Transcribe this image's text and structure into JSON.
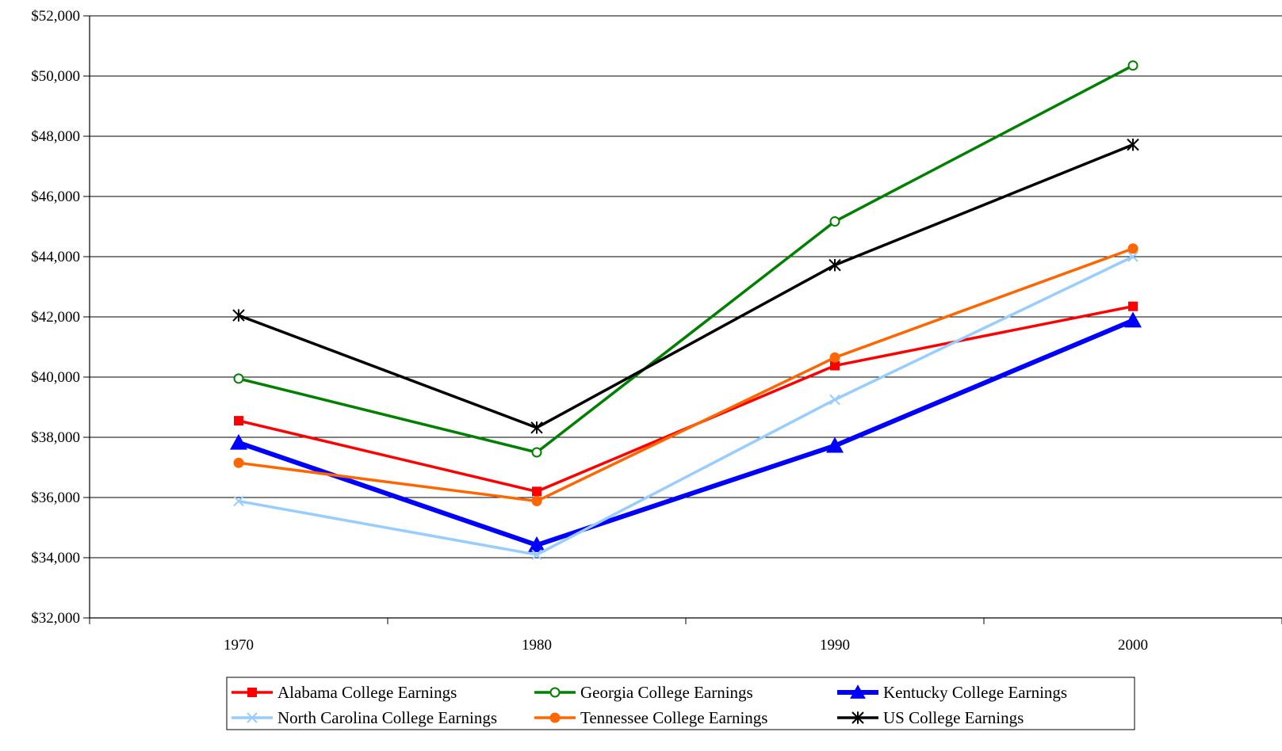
{
  "chart_data": {
    "type": "line",
    "title": "",
    "xlabel": "",
    "ylabel": "",
    "categories": [
      "1970",
      "1980",
      "1990",
      "2000"
    ],
    "ylim": [
      32000,
      52000
    ],
    "y_ticks": [
      32000,
      34000,
      36000,
      38000,
      40000,
      42000,
      44000,
      46000,
      48000,
      50000,
      52000
    ],
    "y_tick_labels": [
      "$32,000",
      "$34,000",
      "$36,000",
      "$38,000",
      "$40,000",
      "$42,000",
      "$44,000",
      "$46,000",
      "$48,000",
      "$50,000",
      "$52,000"
    ],
    "grid": true,
    "legend_position": "bottom",
    "series": [
      {
        "name": "Alabama College Earnings",
        "values": [
          38550,
          36200,
          40380,
          42350
        ],
        "color": "#ff0000",
        "marker": "square",
        "line_width": 3.5
      },
      {
        "name": "Georgia College Earnings",
        "values": [
          39950,
          37500,
          45170,
          50350
        ],
        "color": "#008000",
        "marker": "circle-open",
        "line_width": 3.5
      },
      {
        "name": "Kentucky College Earnings",
        "values": [
          37820,
          34420,
          37720,
          41880
        ],
        "color": "#0000ff",
        "marker": "triangle",
        "line_width": 6
      },
      {
        "name": "North Carolina College Earnings",
        "values": [
          35880,
          34100,
          39250,
          44000
        ],
        "color": "#99ccff",
        "marker": "x",
        "line_width": 3.5
      },
      {
        "name": "Tennessee College Earnings",
        "values": [
          37150,
          35880,
          40650,
          44270
        ],
        "color": "#ff6600",
        "marker": "circle",
        "line_width": 3.5
      },
      {
        "name": "US College Earnings",
        "values": [
          42050,
          38320,
          43720,
          47720
        ],
        "color": "#000000",
        "marker": "star",
        "line_width": 3.5
      }
    ]
  }
}
